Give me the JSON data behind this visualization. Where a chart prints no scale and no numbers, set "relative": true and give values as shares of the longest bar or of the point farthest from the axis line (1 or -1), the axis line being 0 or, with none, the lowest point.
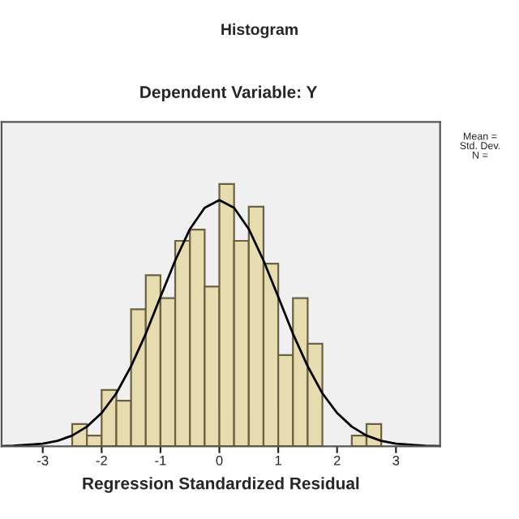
{
  "chart_data": {
    "type": "histogram",
    "title": "Histogram",
    "subtitle": "Dependent Variable: Y",
    "xlabel": "Regression Standardized Residual",
    "relative": true,
    "bins": [
      -2.5,
      -2.25,
      -2.0,
      -1.75,
      -1.5,
      -1.25,
      -1.0,
      -0.75,
      -0.5,
      -0.25,
      0.0,
      0.25,
      0.5,
      0.75,
      1.0,
      1.25,
      1.5,
      1.75,
      2.0,
      2.25,
      2.5,
      2.75
    ],
    "values": [
      0.085,
      0.041,
      0.215,
      0.174,
      0.522,
      0.652,
      0.565,
      0.783,
      0.826,
      0.609,
      1,
      0.783,
      0.913,
      0.696,
      0.348,
      0.565,
      0.391,
      0,
      0,
      0.041,
      0.085
    ],
    "color": "#e6dcb0",
    "series": [
      {
        "type": "line",
        "color": "#000000",
        "x": [
          -3.7,
          -3.5,
          -3.0,
          -2.75,
          -2.5,
          -2.25,
          -2.0,
          -1.75,
          -1.5,
          -1.25,
          -1.0,
          -0.75,
          -0.5,
          -0.25,
          0.0,
          0.25,
          0.5,
          0.75,
          1.0,
          1.25,
          1.5,
          1.75,
          2.0,
          2.25,
          2.5,
          2.75,
          3.0,
          3.5,
          3.75
        ],
        "values": [
          0.001,
          0.002,
          0.01,
          0.021,
          0.041,
          0.075,
          0.127,
          0.202,
          0.305,
          0.429,
          0.57,
          0.708,
          0.828,
          0.909,
          0.938,
          0.909,
          0.828,
          0.708,
          0.57,
          0.429,
          0.305,
          0.202,
          0.127,
          0.075,
          0.041,
          0.021,
          0.01,
          0.002,
          0.001
        ]
      }
    ],
    "xlim": [
      -3.7,
      3.75
    ],
    "xticks": [
      -3,
      -2,
      -1,
      0,
      1,
      2,
      3
    ],
    "grid": false,
    "legend": false,
    "annotations": [
      "Mean =\nStd. Dev.\nN ="
    ]
  }
}
